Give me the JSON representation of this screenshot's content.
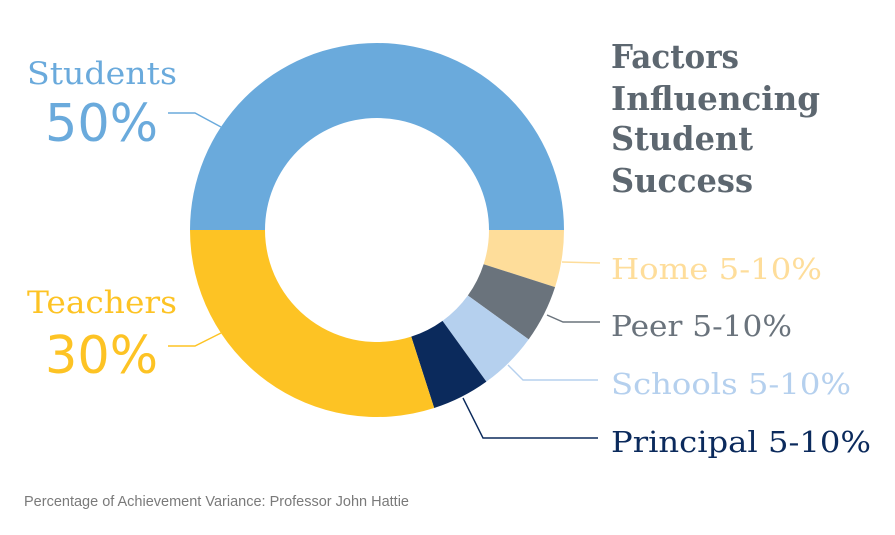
{
  "chart_data": {
    "type": "pie",
    "subtype": "donut",
    "title": "Factors Influencing Student Success",
    "title_lines": [
      "Factors",
      "Influencing",
      "Student",
      "Success"
    ],
    "footnote": "Percentage of Achievement Variance: Professor John Hattie",
    "slices": [
      {
        "name": "Students",
        "label": "Students",
        "value_label": "50%",
        "value": 50,
        "range": "50%",
        "color": "#6aaadc",
        "start_deg": 180,
        "end_deg": 360
      },
      {
        "name": "Home",
        "label": "Home 5-10%",
        "value_label": "5-10%",
        "value": 5,
        "range": "5-10%",
        "color": "#fedd9a",
        "start_deg": 0,
        "end_deg": 17.8
      },
      {
        "name": "Peer",
        "label": "Peer 5-10%",
        "value_label": "5-10%",
        "value": 5,
        "range": "5-10%",
        "color": "#6a737c",
        "start_deg": 17.8,
        "end_deg": 35.8
      },
      {
        "name": "Schools",
        "label": "Schools 5-10%",
        "value_label": "5-10%",
        "value": 5,
        "range": "5-10%",
        "color": "#b5d0ee",
        "start_deg": 35.8,
        "end_deg": 54.2
      },
      {
        "name": "Principal",
        "label": "Principal 5-10%",
        "value_label": "5-10%",
        "value": 5,
        "range": "5-10%",
        "color": "#0b2a5c",
        "start_deg": 54.2,
        "end_deg": 72.2
      },
      {
        "name": "Teachers",
        "label": "Teachers",
        "value_label": "30%",
        "value": 30,
        "range": "30%",
        "color": "#fdc324",
        "start_deg": 72.2,
        "end_deg": 180
      }
    ],
    "legend_position": "inline labels with leader lines",
    "grid": false
  },
  "colors": {
    "title": "#5d6770",
    "footnote": "#7a7a7a",
    "background": "#ffffff"
  },
  "labels": {
    "students": {
      "name": "Students",
      "pct": "50%"
    },
    "teachers": {
      "name": "Teachers",
      "pct": "30%"
    },
    "home": "Home 5-10%",
    "peer": "Peer 5-10%",
    "schools": "Schools 5-10%",
    "principal": "Principal 5-10%"
  },
  "title": {
    "line1": "Factors",
    "line2": "Influencing",
    "line3": "Student",
    "line4": "Success"
  },
  "footnote": "Percentage of Achievement Variance: Professor John Hattie"
}
